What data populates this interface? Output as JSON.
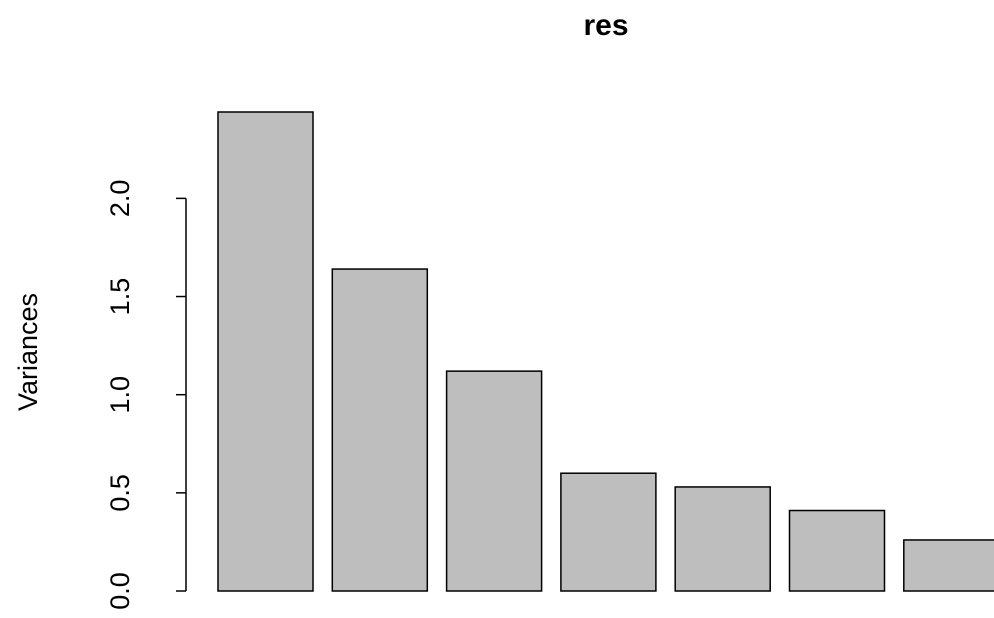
{
  "chart_data": {
    "type": "bar",
    "title": "res",
    "y_label": "Variances",
    "categories": [
      null,
      null,
      null,
      null,
      null,
      null,
      null
    ],
    "values": [
      2.44,
      1.64,
      1.12,
      0.6,
      0.53,
      0.41,
      0.26
    ],
    "color": "#bebebe",
    "ylim": [
      0,
      2.44
    ],
    "yticks": [
      {
        "value": 0,
        "label": "0.0"
      },
      0.5,
      {
        "value": 1,
        "label": "1.0"
      },
      1.5,
      {
        "value": 2,
        "label": "2.0"
      }
    ],
    "grid": false
  }
}
